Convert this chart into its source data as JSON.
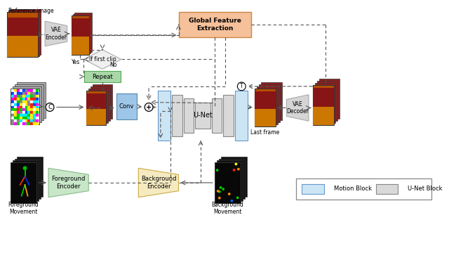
{
  "bg_color": "#ffffff",
  "ref_image_label": "Reference image",
  "vae_encoder_label": "VAE\nEncoder",
  "vae_decoder_label": "VAE\nDecoder",
  "global_feat_label": "Global Feature\nExtraction",
  "if_first_clip_label": "If first clip",
  "yes_label": "Yes",
  "no_label": "No",
  "repeat_label": "Repeat",
  "conv_label": "Conv",
  "unet_label": "U-Net",
  "last_frame_label": "Last frame",
  "foreground_encoder_label": "Foreground\nEncoder",
  "background_encoder_label": "Background\nEncoder",
  "foreground_movement_label": "Foreground\nMovement",
  "background_movement_label": "Background\nMovement",
  "concat_symbol": "C",
  "plus_symbol": "+",
  "t_symbol": "T",
  "motion_block_label": "Motion Block",
  "unet_block_label": "U-Net Block",
  "motion_block_color": "#cce5f5",
  "unet_block_color": "#d9d9d9",
  "global_feat_color": "#f5c09a",
  "repeat_color": "#a8d8a8",
  "foreground_enc_color": "#c8e6c8",
  "background_enc_color": "#f5eac0",
  "conv_color": "#9ec6e8",
  "diamond_color": "#f0f0f0",
  "arrow_color": "#555555"
}
